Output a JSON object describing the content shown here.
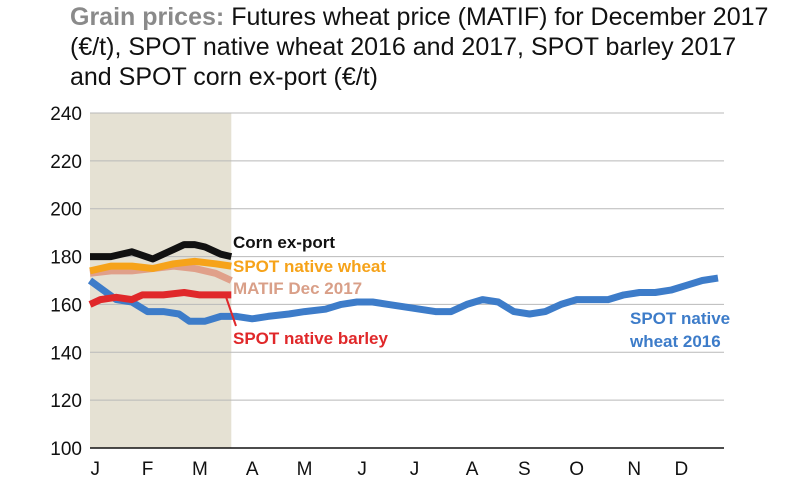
{
  "title": {
    "lead": "Grain prices:",
    "text": "Futures wheat price (MATIF) for December 2017 (€/t), SPOT native wheat 2016 and 2017, SPOT barley 2017 and SPOT corn ex-port (€/t)"
  },
  "chart_data": {
    "type": "line",
    "title": "Grain prices: Futures wheat price (MATIF) for December 2017 (€/t), SPOT native wheat 2016 and 2017, SPOT barley 2017 and SPOT corn ex-port (€/t)",
    "xlabel": "",
    "ylabel": "",
    "ylim": [
      100,
      240
    ],
    "yticks": [
      100,
      120,
      140,
      160,
      180,
      200,
      220,
      240
    ],
    "grid": "horizontal",
    "xlim": [
      0,
      12
    ],
    "month_ticks": [
      {
        "label": "J",
        "x": 0.1
      },
      {
        "label": "F",
        "x": 1.1
      },
      {
        "label": "M",
        "x": 2.1
      },
      {
        "label": "A",
        "x": 3.1
      },
      {
        "label": "M",
        "x": 4.1
      },
      {
        "label": "J",
        "x": 5.2
      },
      {
        "label": "J",
        "x": 6.2
      },
      {
        "label": "A",
        "x": 7.3
      },
      {
        "label": "S",
        "x": 8.3
      },
      {
        "label": "O",
        "x": 9.3
      },
      {
        "label": "N",
        "x": 10.4
      },
      {
        "label": "D",
        "x": 11.3
      }
    ],
    "highlight_range": [
      0,
      2.7
    ],
    "highlight_color": "#e5e1d3",
    "series": [
      {
        "name": "Corn ex-port",
        "color": "#111111",
        "label_color": "#111111",
        "points": [
          [
            0,
            180
          ],
          [
            0.4,
            180
          ],
          [
            0.8,
            182
          ],
          [
            1.2,
            179
          ],
          [
            1.6,
            183
          ],
          [
            1.8,
            185
          ],
          [
            2.0,
            185
          ],
          [
            2.2,
            184
          ],
          [
            2.5,
            181
          ],
          [
            2.7,
            180
          ]
        ]
      },
      {
        "name": "SPOT native wheat",
        "color": "#f6a31a",
        "label_color": "#f6a31a",
        "points": [
          [
            0,
            174
          ],
          [
            0.4,
            176
          ],
          [
            0.8,
            176
          ],
          [
            1.2,
            175
          ],
          [
            1.6,
            177
          ],
          [
            2.0,
            178
          ],
          [
            2.4,
            177
          ],
          [
            2.7,
            176
          ]
        ]
      },
      {
        "name": "MATIF Dec 2017",
        "color": "#e0a08a",
        "label_color": "#d99f88",
        "points": [
          [
            0,
            173
          ],
          [
            0.4,
            174
          ],
          [
            0.8,
            174
          ],
          [
            1.2,
            175
          ],
          [
            1.6,
            176
          ],
          [
            2.0,
            175
          ],
          [
            2.4,
            173
          ],
          [
            2.7,
            170
          ]
        ]
      },
      {
        "name": "SPOT native barley",
        "color": "#e0282a",
        "label_color": "#e0282a",
        "points": [
          [
            0,
            160
          ],
          [
            0.2,
            162
          ],
          [
            0.5,
            163
          ],
          [
            0.8,
            162
          ],
          [
            1.0,
            164
          ],
          [
            1.4,
            164
          ],
          [
            1.8,
            165
          ],
          [
            2.1,
            164
          ],
          [
            2.4,
            164
          ],
          [
            2.7,
            164
          ]
        ]
      },
      {
        "name": "SPOT native wheat 2016",
        "color": "#3d7cc9",
        "label_color": "#3d7cc9",
        "points": [
          [
            0,
            170
          ],
          [
            0.25,
            166
          ],
          [
            0.5,
            162
          ],
          [
            0.8,
            161
          ],
          [
            1.1,
            157
          ],
          [
            1.4,
            157
          ],
          [
            1.7,
            156
          ],
          [
            1.9,
            153
          ],
          [
            2.2,
            153
          ],
          [
            2.5,
            155
          ],
          [
            2.8,
            155
          ],
          [
            3.1,
            154
          ],
          [
            3.4,
            155
          ],
          [
            3.8,
            156
          ],
          [
            4.1,
            157
          ],
          [
            4.5,
            158
          ],
          [
            4.8,
            160
          ],
          [
            5.1,
            161
          ],
          [
            5.4,
            161
          ],
          [
            5.7,
            160
          ],
          [
            6.0,
            159
          ],
          [
            6.3,
            158
          ],
          [
            6.6,
            157
          ],
          [
            6.9,
            157
          ],
          [
            7.2,
            160
          ],
          [
            7.5,
            162
          ],
          [
            7.8,
            161
          ],
          [
            8.1,
            157
          ],
          [
            8.4,
            156
          ],
          [
            8.7,
            157
          ],
          [
            9.0,
            160
          ],
          [
            9.3,
            162
          ],
          [
            9.6,
            162
          ],
          [
            9.9,
            162
          ],
          [
            10.2,
            164
          ],
          [
            10.5,
            165
          ],
          [
            10.8,
            165
          ],
          [
            11.1,
            166
          ],
          [
            11.4,
            168
          ],
          [
            11.7,
            170
          ],
          [
            12.0,
            171
          ]
        ]
      }
    ],
    "labels": [
      {
        "series": 0,
        "text": "Corn ex-port"
      },
      {
        "series": 1,
        "text": "SPOT native wheat"
      },
      {
        "series": 2,
        "text": "MATIF Dec 2017"
      },
      {
        "series": 3,
        "text": "SPOT native barley"
      },
      {
        "series": 4,
        "text": "SPOT native"
      },
      {
        "series": 4,
        "text": "wheat 2016"
      }
    ]
  }
}
